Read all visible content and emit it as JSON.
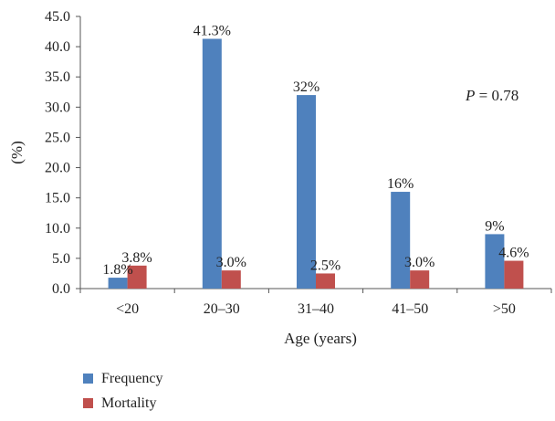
{
  "chart_data": {
    "type": "bar",
    "categories": [
      "<20",
      "20–30",
      "31–40",
      "41–50",
      ">50"
    ],
    "series": [
      {
        "name": "Frequency",
        "values": [
          1.8,
          41.3,
          32,
          16,
          9
        ],
        "labels": [
          "1.8%",
          "41.3%",
          "32%",
          "16%",
          "9%"
        ],
        "color": "#4f81bd"
      },
      {
        "name": "Mortality",
        "values": [
          3.8,
          3.0,
          2.5,
          3.0,
          4.6
        ],
        "labels": [
          "3.8%",
          "3.0%",
          "2.5%",
          "3.0%",
          "4.6%"
        ],
        "color": "#c0504d"
      }
    ],
    "ylim": [
      0,
      45
    ],
    "y_ticks": [
      "0.0",
      "5.0",
      "10.0",
      "15.0",
      "20.0",
      "25.0",
      "30.0",
      "35.0",
      "40.0",
      "45.0"
    ],
    "xlabel": "Age (years)",
    "ylabel": "(%)",
    "annotation": {
      "italic": "P",
      "text": " = 0.78"
    },
    "legend": "bottom-left",
    "grid": false
  }
}
